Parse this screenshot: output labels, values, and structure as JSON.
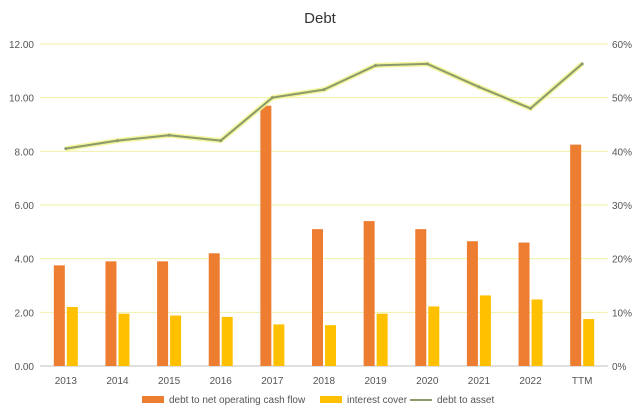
{
  "chart_data": {
    "type": "bar",
    "title": "Debt",
    "xlabel": "",
    "ylabel": "",
    "categories": [
      "2013",
      "2014",
      "2015",
      "2016",
      "2017",
      "2018",
      "2019",
      "2020",
      "2021",
      "2022",
      "TTM"
    ],
    "y_left": {
      "min": 0,
      "max": 12,
      "ticks": [
        0,
        2,
        4,
        6,
        8,
        10,
        12
      ],
      "tick_labels": [
        "0.00",
        "2.00",
        "4.00",
        "6.00",
        "8.00",
        "10.00",
        "12.00"
      ]
    },
    "y_right": {
      "min": 0,
      "max": 60,
      "ticks": [
        0,
        10,
        20,
        30,
        40,
        50,
        60
      ],
      "tick_labels": [
        "0%",
        "10%",
        "20%",
        "30%",
        "40%",
        "50%",
        "60%"
      ]
    },
    "grid": "horizontal",
    "legend_position": "bottom",
    "series": [
      {
        "name": "debt to net operating cash flow",
        "type": "bar",
        "axis": "left",
        "color": "#ED7D31",
        "values": [
          3.75,
          3.9,
          3.9,
          4.2,
          9.7,
          5.1,
          5.4,
          5.1,
          4.65,
          4.6,
          8.25
        ]
      },
      {
        "name": "interest cover",
        "type": "bar",
        "axis": "left",
        "color": "#FFC000",
        "values": [
          2.2,
          1.95,
          1.88,
          1.83,
          1.55,
          1.52,
          1.95,
          2.22,
          2.63,
          2.48,
          1.75
        ]
      },
      {
        "name": "debt to asset",
        "type": "line",
        "axis": "right",
        "color": "#8A9A6C",
        "values": [
          40.5,
          42.0,
          43.0,
          42.0,
          50.0,
          51.5,
          56.0,
          56.3,
          52.0,
          48.0,
          56.3
        ]
      }
    ]
  }
}
